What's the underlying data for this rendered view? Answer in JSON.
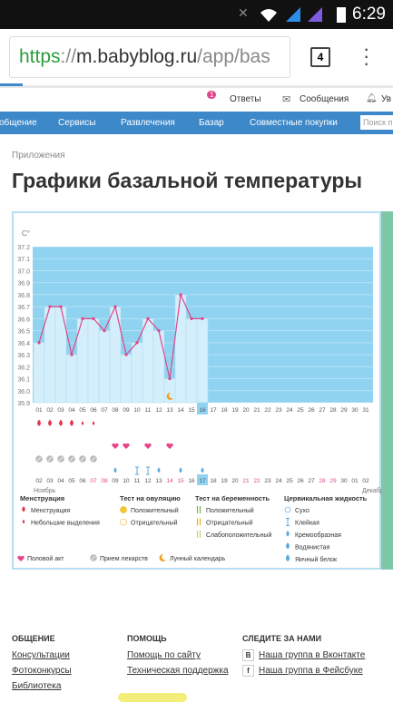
{
  "status": {
    "time": "6:29"
  },
  "browser": {
    "url": {
      "scheme": "https",
      "sep": "://",
      "host": "m.babyblog.ru",
      "path": "/app/bas"
    },
    "tabs": "4"
  },
  "toplinks": {
    "answers": "Ответы",
    "badge": "1",
    "messages": "Сообщения",
    "notify": "Ув"
  },
  "nav": {
    "items": [
      "общение",
      "Сервисы",
      "Развлечения",
      "Базар",
      "Совместные покупки"
    ],
    "search": "Поиск п"
  },
  "breadcrumb": "Приложения",
  "title": "Графики базальной температуры",
  "chart": {
    "type": "line",
    "unit": "С°",
    "days": [
      "01",
      "02",
      "03",
      "04",
      "05",
      "06",
      "07",
      "08",
      "09",
      "10",
      "11",
      "12",
      "13",
      "14",
      "15",
      "16",
      "17",
      "18",
      "19",
      "20",
      "21",
      "22",
      "23",
      "24",
      "25",
      "26",
      "27",
      "28",
      "29",
      "30",
      "31"
    ],
    "values": [
      36.4,
      36.7,
      36.7,
      36.3,
      36.6,
      36.6,
      36.5,
      36.7,
      36.3,
      36.4,
      36.6,
      36.5,
      36.1,
      36.8,
      36.6,
      36.6,
      null,
      null,
      null,
      null,
      null,
      null,
      null,
      null,
      null,
      null,
      null,
      null,
      null,
      null,
      null
    ],
    "ylim": [
      35.9,
      37.2
    ],
    "yticks": [
      35.9,
      {
        "value": 36,
        "label": "36.0"
      },
      36.1,
      36.2,
      36.3,
      36.4,
      36.5,
      36.6,
      36.7,
      36.8,
      36.9,
      {
        "value": 37,
        "label": "37.0"
      },
      37.1,
      37.2
    ],
    "grid": true,
    "line_color": "#e0468a",
    "bar_color": "#d4effb",
    "plot_color": "#8fd3f0",
    "highlight": "16",
    "dates2": [
      "02",
      "03",
      "04",
      "05",
      "06",
      "07",
      "08",
      "09",
      "10",
      "11",
      "12",
      "13",
      "14",
      "15",
      "16",
      "17",
      "18",
      "19",
      "20",
      "21",
      "22",
      "23",
      "24",
      "25",
      "26",
      "27",
      "28",
      "29",
      "30",
      "01",
      "02"
    ],
    "dates2_red": [
      "07",
      "08",
      "14",
      "15",
      "21",
      "22",
      "28",
      "29"
    ],
    "dates2_highlight": "17",
    "month1": "Ноябрь",
    "month2": "Декабрь",
    "events": {
      "menstruation_heavy": [
        "01",
        "02",
        "03",
        "04"
      ],
      "menstruation_light": [
        "05",
        "06"
      ],
      "sex": [
        "08",
        "09",
        "11",
        "13"
      ],
      "medicine": [
        "01",
        "02",
        "03",
        "04",
        "05",
        "06"
      ],
      "cervical_drop": [
        "08",
        "12",
        "14",
        "16"
      ],
      "cervical_sticky": [
        "10",
        "11"
      ],
      "moon": [
        "13"
      ]
    }
  },
  "legend": {
    "groups": [
      {
        "title": "Менструация",
        "items": [
          "Менструация",
          "Небольшие выделения"
        ]
      },
      {
        "title": "Тест на овуляцию",
        "items": [
          "Положительный",
          "Отрицательный"
        ]
      },
      {
        "title": "Тест на беременность",
        "items": [
          "Положительный",
          "Отрицательный",
          "Слабоположительный"
        ]
      },
      {
        "title": "Цервикальная жидкость",
        "items": [
          "Сухо",
          "Клейкая",
          "Кремообразная",
          "Водянистая",
          "Яичный белок"
        ]
      }
    ],
    "bottom": [
      "Половой акт",
      "Прием лекарств",
      "Лунный календарь"
    ]
  },
  "footer": {
    "columns": [
      {
        "title": "ОБЩЕНИЕ",
        "links": [
          "Консультации",
          "Фотоконкурсы",
          "Библиотека"
        ]
      },
      {
        "title": "ПОМОЩЬ",
        "links": [
          "Помощь по сайту",
          "Техническая поддержка"
        ]
      },
      {
        "title": "СЛЕДИТЕ ЗА НАМИ",
        "links": [
          "Наша группа в Вконтакте",
          "Наша группа в Фейсбуке"
        ],
        "icons": [
          "В",
          "f"
        ]
      }
    ]
  }
}
